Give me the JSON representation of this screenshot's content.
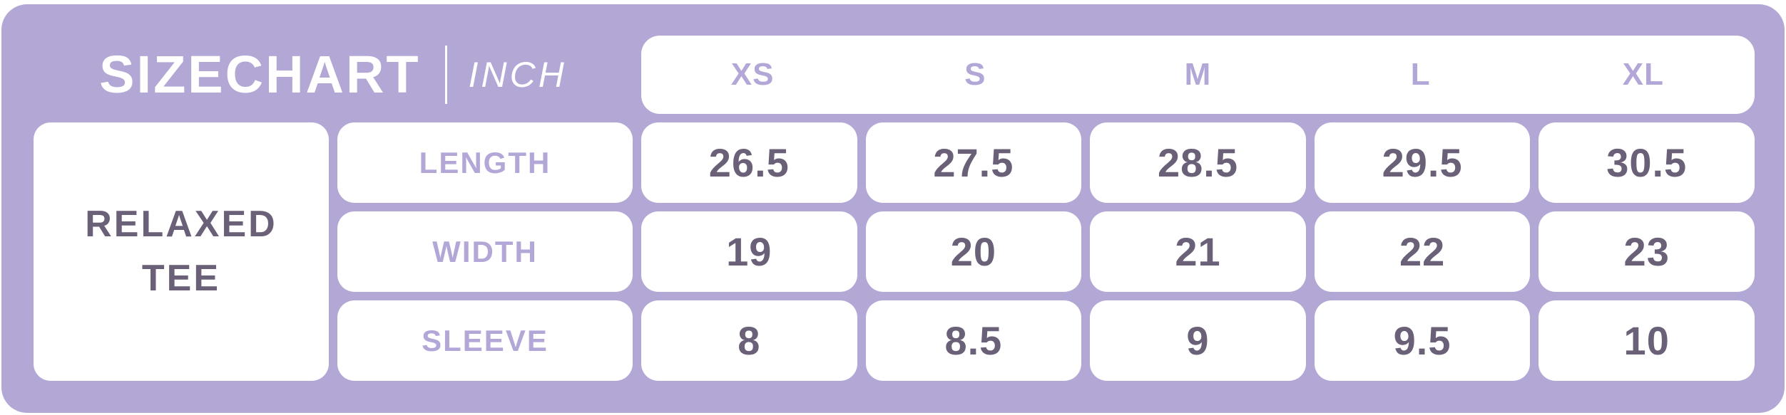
{
  "chart_data": {
    "type": "table",
    "title": "SIZECHART",
    "unit": "INCH",
    "product": "RELAXED\nTEE",
    "sizes": [
      "XS",
      "S",
      "M",
      "L",
      "XL"
    ],
    "rows": [
      {
        "label": "LENGTH",
        "values": [
          "26.5",
          "27.5",
          "28.5",
          "29.5",
          "30.5"
        ]
      },
      {
        "label": "WIDTH",
        "values": [
          "19",
          "20",
          "21",
          "22",
          "23"
        ]
      },
      {
        "label": "SLEEVE",
        "values": [
          "8",
          "8.5",
          "9",
          "9.5",
          "10"
        ]
      }
    ],
    "layout": {
      "legend": "none",
      "grid": "rounded-white-cells-on-lavender"
    }
  },
  "colors": {
    "panel_background": "#b2a7d5",
    "cell_background": "#ffffff",
    "accent_text": "#b3a7d8",
    "dark_text": "#6a6178",
    "title_text": "#ffffff"
  }
}
